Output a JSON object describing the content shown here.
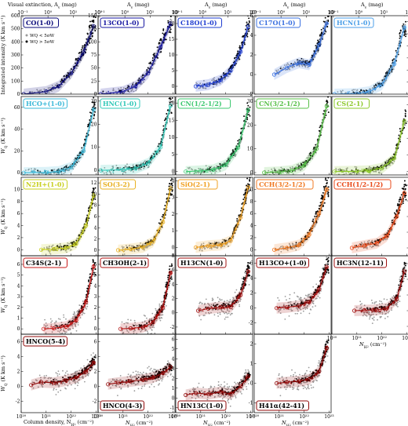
{
  "figure": {
    "top_label_text": "Visual extinction, A",
    "top_label_sub": "v",
    "top_label_unit": " (mag)",
    "top_axis_short": "A",
    "top_axis_sub": "v",
    "top_axis_unit": " (mag)",
    "bottom_first_label": "Column density, N",
    "bottom_label": "N",
    "bottom_sub": "H",
    "bottom_subsub": "2",
    "bottom_unit": " (cm",
    "bottom_unit_exp": "−2",
    "bottom_unit_close": ")",
    "ylabel_row0": "Integrated intensity (K km s",
    "ylabel_row0_exp": "−1",
    "ylabel_row0_close": ")",
    "ylabel_other": "W",
    "ylabel_other_sub": "Q",
    "ylabel_other_unit": " (K km s",
    "ylabel_other_exp": "−1",
    "ylabel_other_close": ")",
    "legend_low": "W",
    "legend_low_rest": "Q < 5σW",
    "legend_high": "W",
    "legend_high_rest": "Q > 5σW"
  },
  "ticks": {
    "x_log": [
      "10²⁰",
      "10²¹",
      "10²²",
      "10²³"
    ],
    "top_log": [
      "10⁻¹",
      "10⁰",
      "10¹",
      "10²"
    ]
  },
  "colors": {
    "grey_points": "#9a9a9a",
    "black_points": "#000000",
    "frame": "#000000"
  },
  "chart_data": {
    "type": "scatter",
    "x_label": "Column density, N_H2 (cm^-2)",
    "top_label": "Visual extinction, A_v (mag)",
    "x_scale": "log",
    "xlim": [
      1e+20,
      1.2e+23
    ],
    "top_lim": [
      0.1,
      100
    ],
    "panels": [
      {
        "title": "CO(1-0)",
        "color": "#0a0a7a",
        "ylim": [
          0,
          600
        ],
        "yticks": [
          0,
          100,
          200,
          300,
          400,
          500,
          600
        ],
        "trend": [
          [
            20.1,
            0
          ],
          [
            21.0,
            20
          ],
          [
            21.5,
            60
          ],
          [
            22.0,
            160
          ],
          [
            22.5,
            320
          ],
          [
            22.9,
            520
          ]
        ],
        "x_start": 20.1
      },
      {
        "title": "13CO(1-0)",
        "color": "#1414a0",
        "ylim": [
          0,
          150
        ],
        "yticks": [
          0,
          25,
          50,
          75,
          100,
          125,
          150
        ],
        "trend": [
          [
            20.1,
            0
          ],
          [
            21.0,
            5
          ],
          [
            21.5,
            15
          ],
          [
            22.0,
            40
          ],
          [
            22.5,
            90
          ],
          [
            22.9,
            135
          ]
        ],
        "x_start": 20.1
      },
      {
        "title": "C18O(1-0)",
        "color": "#1e3cd0",
        "ylim": [
          -2.5,
          22.5
        ],
        "yticks": [
          0,
          5,
          10,
          15,
          20
        ],
        "trend": [
          [
            20.8,
            0
          ],
          [
            21.3,
            0.5
          ],
          [
            21.8,
            2
          ],
          [
            22.2,
            5
          ],
          [
            22.6,
            11
          ],
          [
            22.9,
            19
          ]
        ],
        "x_start": 20.8
      },
      {
        "title": "C17O(1-0)",
        "color": "#3a70e0",
        "ylim": [
          -2,
          6
        ],
        "yticks": [
          -2,
          0,
          2,
          4,
          6
        ],
        "trend": [
          [
            20.8,
            0
          ],
          [
            21.3,
            0.7
          ],
          [
            21.8,
            1.2
          ],
          [
            22.2,
            1.0
          ],
          [
            22.6,
            3.0
          ],
          [
            22.9,
            5.2
          ]
        ],
        "x_start": 20.8
      },
      {
        "title": "HCN(1-0)",
        "color": "#4a9ee8",
        "ylim": [
          0,
          65
        ],
        "yticks": [
          0,
          10,
          20,
          30,
          40,
          50,
          60
        ],
        "trend": [
          [
            20.1,
            0
          ],
          [
            21.0,
            0.5
          ],
          [
            21.5,
            2
          ],
          [
            22.0,
            8
          ],
          [
            22.5,
            25
          ],
          [
            22.9,
            55
          ]
        ],
        "x_start": 20.1
      },
      {
        "title": "HCO+(1-0)",
        "color": "#3ab8d8",
        "ylim": [
          -2,
          70
        ],
        "yticks": [
          0,
          20,
          40,
          60
        ],
        "trend": [
          [
            20.1,
            0
          ],
          [
            21.0,
            0.3
          ],
          [
            21.5,
            1
          ],
          [
            22.0,
            5
          ],
          [
            22.5,
            20
          ],
          [
            22.9,
            58
          ]
        ],
        "x_start": 20.1
      },
      {
        "title": "HNC(1-0)",
        "color": "#30c8b8",
        "ylim": [
          -2,
          32
        ],
        "yticks": [
          0,
          10,
          20,
          30
        ],
        "trend": [
          [
            20.1,
            0
          ],
          [
            21.0,
            0.2
          ],
          [
            21.5,
            0.8
          ],
          [
            22.0,
            3
          ],
          [
            22.5,
            10
          ],
          [
            22.9,
            28
          ]
        ],
        "x_start": 20.1
      },
      {
        "title": "CN(1/2-1/2)",
        "color": "#3cc870",
        "ylim": [
          -1,
          22
        ],
        "yticks": [
          0,
          5,
          10,
          15,
          20
        ],
        "trend": [
          [
            20.4,
            0
          ],
          [
            21.0,
            0.2
          ],
          [
            21.5,
            0.5
          ],
          [
            22.0,
            2
          ],
          [
            22.5,
            7
          ],
          [
            22.9,
            18
          ]
        ],
        "x_start": 20.4
      },
      {
        "title": "CN(3/2-1/2)",
        "color": "#58c048",
        "ylim": [
          -1,
          32
        ],
        "yticks": [
          0,
          10,
          20,
          30
        ],
        "trend": [
          [
            20.4,
            0
          ],
          [
            21.0,
            0.3
          ],
          [
            21.5,
            0.8
          ],
          [
            22.0,
            3
          ],
          [
            22.5,
            10
          ],
          [
            22.9,
            28
          ]
        ],
        "x_start": 20.4
      },
      {
        "title": "CS(2-1)",
        "color": "#8cc828",
        "ylim": [
          -2,
          45
        ],
        "yticks": [
          0,
          10,
          20,
          30,
          40
        ],
        "trend": [
          [
            20.1,
            0
          ],
          [
            21.0,
            0.2
          ],
          [
            21.5,
            0.5
          ],
          [
            22.0,
            2
          ],
          [
            22.5,
            8
          ],
          [
            22.9,
            30
          ]
        ],
        "x_start": 20.1
      },
      {
        "title": "N2H+(1-0)",
        "color": "#c8d020",
        "ylim": [
          -1,
          12
        ],
        "yticks": [
          0,
          2,
          4,
          6,
          8,
          10
        ],
        "trend": [
          [
            20.8,
            0
          ],
          [
            21.3,
            0.1
          ],
          [
            21.8,
            0.3
          ],
          [
            22.2,
            1.0
          ],
          [
            22.6,
            4.0
          ],
          [
            22.9,
            9.0
          ]
        ],
        "x_start": 20.8
      },
      {
        "title": "SO(3-2)",
        "color": "#e8b020",
        "ylim": [
          -1,
          13
        ],
        "yticks": [
          0,
          2,
          4,
          6,
          8,
          10,
          12
        ],
        "trend": [
          [
            20.8,
            0
          ],
          [
            21.3,
            0.2
          ],
          [
            21.8,
            0.5
          ],
          [
            22.2,
            1.5
          ],
          [
            22.6,
            5.0
          ],
          [
            22.9,
            11.0
          ]
        ],
        "x_start": 20.8
      },
      {
        "title": "SiO(2-1)",
        "color": "#f0a020",
        "ylim": [
          -0.5,
          4.2
        ],
        "yticks": [
          0,
          1,
          2,
          3,
          4
        ],
        "trend": [
          [
            20.8,
            0
          ],
          [
            21.3,
            0.1
          ],
          [
            21.8,
            0.15
          ],
          [
            22.2,
            0.4
          ],
          [
            22.6,
            1.8
          ],
          [
            22.9,
            3.6
          ]
        ],
        "x_start": 20.8
      },
      {
        "title": "CCH(3/2-1/2)",
        "color": "#f07820",
        "ylim": [
          -1,
          12
        ],
        "yticks": [
          0,
          2,
          4,
          6,
          8,
          10
        ],
        "trend": [
          [
            20.8,
            0
          ],
          [
            21.3,
            0.3
          ],
          [
            21.8,
            0.8
          ],
          [
            22.2,
            2.5
          ],
          [
            22.6,
            6.0
          ],
          [
            22.9,
            10.0
          ]
        ],
        "x_start": 20.8
      },
      {
        "title": "CCH(1/2-1/2)",
        "color": "#e84818",
        "ylim": [
          -1,
          9
        ],
        "yticks": [
          0,
          2,
          4,
          6,
          8
        ],
        "trend": [
          [
            20.8,
            0
          ],
          [
            21.3,
            0.3
          ],
          [
            21.8,
            0.6
          ],
          [
            22.2,
            1.5
          ],
          [
            22.6,
            4.0
          ],
          [
            22.9,
            7.0
          ]
        ],
        "x_start": 20.8
      },
      {
        "title": "C34S(2-1)",
        "color": "#c81818",
        "ylim": [
          -0.5,
          6.8
        ],
        "yticks": [
          0,
          1,
          2,
          3,
          4,
          5,
          6
        ],
        "trend": [
          [
            20.9,
            0
          ],
          [
            21.3,
            0.05
          ],
          [
            21.8,
            0.2
          ],
          [
            22.2,
            0.8
          ],
          [
            22.6,
            2.5
          ],
          [
            22.9,
            5.8
          ]
        ],
        "x_start": 20.9
      },
      {
        "title": "CH3OH(2-1)",
        "color": "#b01010",
        "ylim": [
          -0.5,
          6.8
        ],
        "yticks": [
          0,
          1,
          2,
          3,
          4,
          5,
          6
        ],
        "trend": [
          [
            20.9,
            0
          ],
          [
            21.3,
            0.05
          ],
          [
            21.8,
            0.15
          ],
          [
            22.2,
            0.6
          ],
          [
            22.6,
            2.0
          ],
          [
            22.9,
            5.2
          ]
        ],
        "x_start": 20.9
      },
      {
        "title": "H13CN(1-0)",
        "color": "#a01010",
        "ylim": [
          -3,
          8
        ],
        "yticks": [
          -2,
          0,
          2,
          4,
          6,
          8
        ],
        "trend": [
          [
            20.9,
            0.3
          ],
          [
            21.3,
            0.6
          ],
          [
            21.8,
            0.8
          ],
          [
            22.2,
            0.8
          ],
          [
            22.6,
            2.5
          ],
          [
            22.9,
            5.8
          ]
        ],
        "x_start": 20.9
      },
      {
        "title": "H13CO+(1-0)",
        "color": "#a01010",
        "ylim": [
          -3.5,
          7
        ],
        "yticks": [
          -2,
          0,
          2,
          4,
          6
        ],
        "trend": [
          [
            20.9,
            0
          ],
          [
            21.3,
            0.1
          ],
          [
            21.8,
            0.3
          ],
          [
            22.2,
            0.8
          ],
          [
            22.6,
            2.5
          ],
          [
            22.9,
            5.5
          ]
        ],
        "x_start": 20.9
      },
      {
        "title": "HC3N(12-11)",
        "color": "#a01010",
        "ylim": [
          -3,
          7
        ],
        "yticks": [
          -2,
          0,
          2,
          4,
          6
        ],
        "trend": [
          [
            20.9,
            0
          ],
          [
            21.3,
            0.05
          ],
          [
            21.8,
            0.1
          ],
          [
            22.2,
            0.3
          ],
          [
            22.6,
            1.5
          ],
          [
            22.9,
            5.0
          ]
        ],
        "x_start": 20.9
      },
      {
        "title": "HNCO(5-4)",
        "color": "#900808",
        "ylim": [
          -3.5,
          7
        ],
        "yticks": [
          -2,
          0,
          2,
          4,
          6
        ],
        "trend": [
          [
            20.4,
            0.2
          ],
          [
            20.8,
            0.6
          ],
          [
            21.3,
            0.5
          ],
          [
            21.8,
            0.8
          ],
          [
            22.2,
            1.2
          ],
          [
            22.6,
            2.0
          ],
          [
            22.9,
            3.2
          ]
        ],
        "x_start": 20.4
      },
      {
        "title": "HNCO(4-3)",
        "color": "#900808",
        "ylim": [
          -3.5,
          7
        ],
        "yticks": [
          -2,
          0,
          2,
          4,
          6
        ],
        "trend": [
          [
            20.4,
            0.3
          ],
          [
            20.8,
            0.5
          ],
          [
            21.3,
            0.7
          ],
          [
            21.8,
            0.9
          ],
          [
            22.2,
            1.2
          ],
          [
            22.6,
            1.8
          ],
          [
            22.9,
            2.6
          ]
        ],
        "x_start": 20.4
      },
      {
        "title": "HN13C(1-0)",
        "color": "#900808",
        "ylim": [
          -1.5,
          6.5
        ],
        "yticks": [
          -1,
          0,
          1,
          2,
          3,
          4,
          5,
          6
        ],
        "trend": [
          [
            20.4,
            0.3
          ],
          [
            20.8,
            0.5
          ],
          [
            21.3,
            0.4
          ],
          [
            21.8,
            0.6
          ],
          [
            22.2,
            0.4
          ],
          [
            22.6,
            1.2
          ],
          [
            22.9,
            2.2
          ]
        ],
        "x_start": 20.4
      },
      {
        "title": "H41α(42-41)",
        "color": "#900808",
        "ylim": [
          -1.5,
          2.5
        ],
        "yticks": [
          -1,
          0,
          1,
          2
        ],
        "trend": [
          [
            20.9,
            0
          ],
          [
            21.3,
            0.05
          ],
          [
            21.8,
            0.1
          ],
          [
            22.2,
            0.2
          ],
          [
            22.6,
            0.6
          ],
          [
            22.9,
            1.8
          ]
        ],
        "x_start": 20.9
      }
    ]
  }
}
